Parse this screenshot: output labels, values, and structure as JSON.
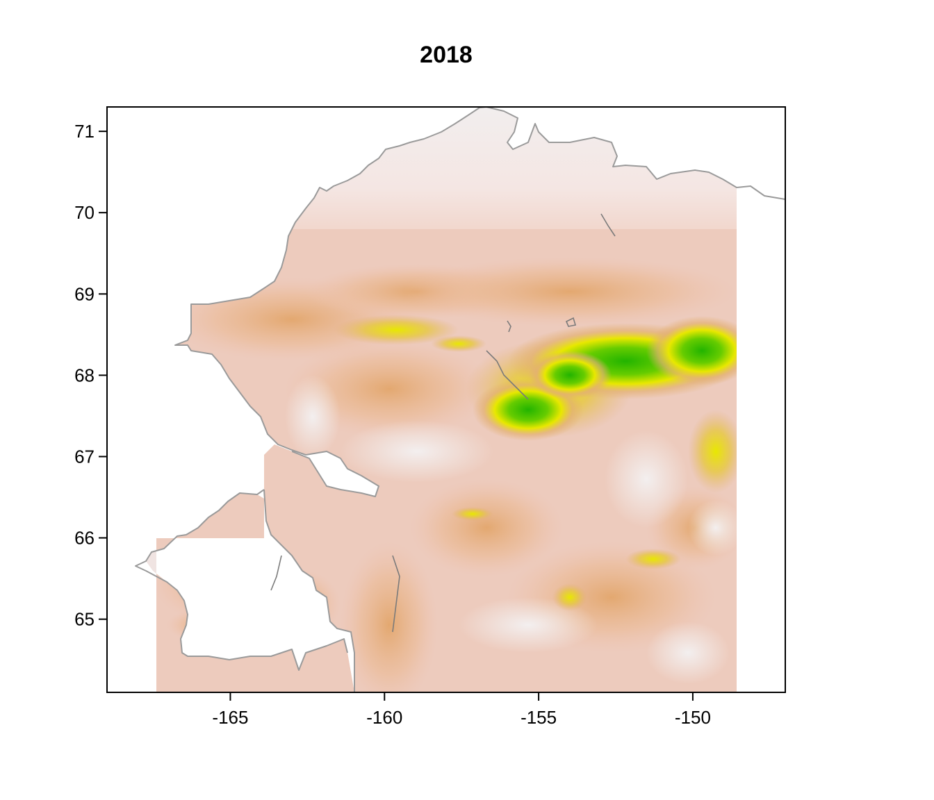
{
  "title": "2018",
  "x_axis": {
    "ticks": [
      {
        "value": -165,
        "label": "-165"
      },
      {
        "value": -160,
        "label": "-160"
      },
      {
        "value": -155,
        "label": "-155"
      },
      {
        "value": -150,
        "label": "-150"
      }
    ],
    "range": [
      -169.0,
      -147.0
    ]
  },
  "y_axis": {
    "ticks": [
      {
        "value": 65,
        "label": "65"
      },
      {
        "value": 66,
        "label": "66"
      },
      {
        "value": 67,
        "label": "67"
      },
      {
        "value": 68,
        "label": "68"
      },
      {
        "value": 69,
        "label": "69"
      },
      {
        "value": 70,
        "label": "70"
      },
      {
        "value": 71,
        "label": "71"
      }
    ],
    "range": [
      64.1,
      71.3
    ]
  },
  "colors": {
    "low": "#f2eeee",
    "mid_low": "#eec2ae",
    "mid": "#e3b072",
    "high_mid": "#e8e800",
    "high": "#22b400",
    "coastline": "#9a9a9a"
  },
  "raster_extent": {
    "lon": [
      -167.0,
      -148.6
    ],
    "lat": [
      64.1,
      70.3
    ]
  }
}
